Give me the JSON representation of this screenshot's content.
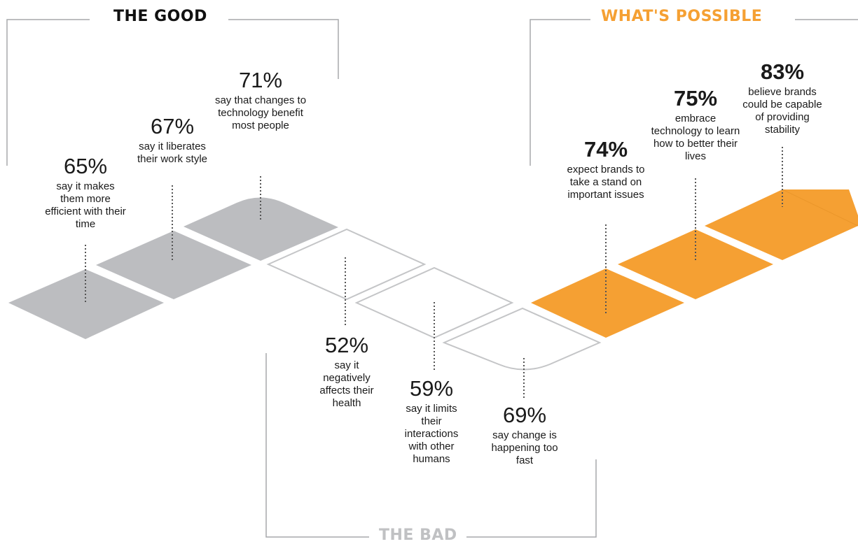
{
  "sections": {
    "good": "THE GOOD",
    "bad": "THE BAD",
    "possible": "WHAT'S POSSIBLE"
  },
  "colors": {
    "good": "#bcbdc0",
    "bad_outline": "#c4c5c7",
    "possible": "#f5a033",
    "bracket": "#a7a9ac",
    "title_good": "#111111",
    "title_bad": "#c0c1c3",
    "title_possible": "#f5a033"
  },
  "stats": [
    {
      "group": "good",
      "value": "65%",
      "text": "say it makes them more efficient with their time"
    },
    {
      "group": "good",
      "value": "67%",
      "text": "say it liberates their work style"
    },
    {
      "group": "good",
      "value": "71%",
      "text": "say that changes to technology benefit most people"
    },
    {
      "group": "bad",
      "value": "52%",
      "text": "say it negatively affects their health"
    },
    {
      "group": "bad",
      "value": "59%",
      "text": "say it limits their interactions with other humans"
    },
    {
      "group": "bad",
      "value": "69%",
      "text": "say change is happening too fast"
    },
    {
      "group": "possible",
      "value": "74%",
      "text": "expect brands to take a stand on important issues"
    },
    {
      "group": "possible",
      "value": "75%",
      "text": "embrace technology to learn how to better their lives"
    },
    {
      "group": "possible",
      "value": "83%",
      "text": "believe brands could be capable of providing stability"
    }
  ]
}
